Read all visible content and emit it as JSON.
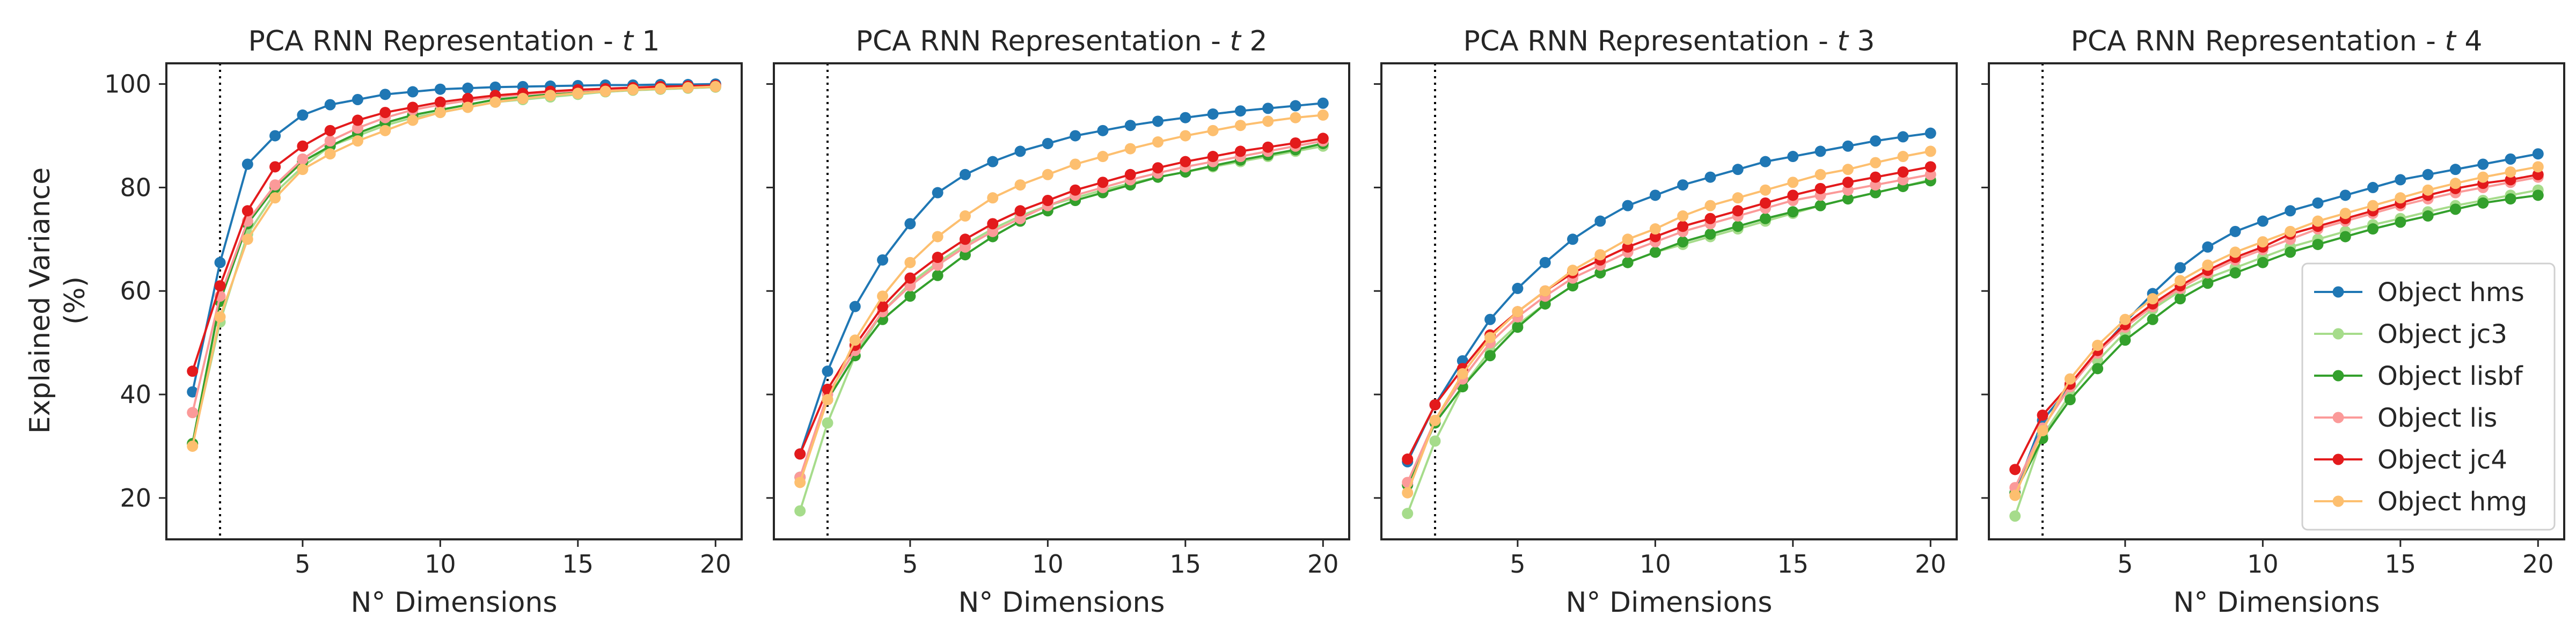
{
  "chart_data": {
    "type": "line",
    "layout": "1x4 panels, shared y-axis",
    "ylabel": "Explained Variance\n(%)",
    "xlabel": "N° Dimensions",
    "ylim": [
      12,
      104
    ],
    "yticks": [
      20,
      40,
      60,
      80,
      100
    ],
    "xlim": [
      0.05,
      20.95
    ],
    "xticks": [
      5,
      10,
      15,
      20
    ],
    "vline_x": 2,
    "grid": false,
    "legend": {
      "position": "bottom-right",
      "panel_index": 3
    },
    "series_styles": [
      {
        "name": "Object hms",
        "color": "#1f77b4"
      },
      {
        "name": "Object jc3",
        "color": "#a6dc8b"
      },
      {
        "name": "Object lisbf",
        "color": "#33a02c"
      },
      {
        "name": "Object lis",
        "color": "#fb9a99"
      },
      {
        "name": "Object jc4",
        "color": "#e31a1c"
      },
      {
        "name": "Object hmg",
        "color": "#fdbf6f"
      }
    ],
    "panels": [
      {
        "title": "PCA RNN Representation - ",
        "title_var": "t",
        "title_num": " 1",
        "x": [
          1,
          2,
          3,
          4,
          5,
          6,
          7,
          8,
          9,
          10,
          11,
          12,
          13,
          14,
          15,
          16,
          17,
          18,
          19,
          20
        ],
        "series": [
          {
            "name": "Object hms",
            "values": [
              40.5,
              65.5,
              84.5,
              90,
              94,
              96,
              97,
              98,
              98.5,
              99,
              99.2,
              99.4,
              99.5,
              99.6,
              99.7,
              99.8,
              99.8,
              99.9,
              99.9,
              100
            ]
          },
          {
            "name": "Object jc3",
            "values": [
              30.5,
              54,
              71,
              79,
              84,
              88,
              90,
              92,
              93.5,
              94.5,
              95.5,
              96.5,
              97,
              97.5,
              98,
              98.5,
              98.8,
              99,
              99.2,
              99.4
            ]
          },
          {
            "name": "Object lisbf",
            "values": [
              30.5,
              58,
              73,
              80,
              85,
              88,
              90.5,
              92.5,
              94,
              95,
              96,
              97,
              97.5,
              98,
              98.3,
              98.6,
              98.9,
              99.1,
              99.3,
              99.5
            ]
          },
          {
            "name": "Object lis",
            "values": [
              36.5,
              59,
              73.5,
              80.5,
              85.5,
              89,
              91.5,
              93.5,
              95,
              96,
              96.8,
              97.5,
              98,
              98.4,
              98.7,
              99,
              99.2,
              99.4,
              99.5,
              99.6
            ]
          },
          {
            "name": "Object jc4",
            "values": [
              44.5,
              61,
              75.5,
              84,
              88,
              91,
              93,
              94.5,
              95.5,
              96.5,
              97.2,
              97.8,
              98.2,
              98.6,
              98.9,
              99.1,
              99.3,
              99.5,
              99.6,
              99.7
            ]
          },
          {
            "name": "Object hmg",
            "values": [
              30,
              55,
              70,
              78,
              83.5,
              86.5,
              89,
              91,
              93,
              94.5,
              95.5,
              96.5,
              97.2,
              97.8,
              98.2,
              98.6,
              98.9,
              99.1,
              99.3,
              99.5
            ]
          }
        ]
      },
      {
        "title": "PCA RNN Representation - ",
        "title_var": "t",
        "title_num": " 2",
        "x": [
          1,
          2,
          3,
          4,
          5,
          6,
          7,
          8,
          9,
          10,
          11,
          12,
          13,
          14,
          15,
          16,
          17,
          18,
          19,
          20
        ],
        "series": [
          {
            "name": "Object hms",
            "values": [
              28.5,
              44.5,
              57,
              66,
              73,
              79,
              82.5,
              85,
              87,
              88.5,
              90,
              91,
              92,
              92.8,
              93.5,
              94.2,
              94.8,
              95.3,
              95.8,
              96.3
            ]
          },
          {
            "name": "Object jc3",
            "values": [
              17.5,
              34.5,
              47.5,
              56,
              61.5,
              65.5,
              69,
              72,
              74.5,
              76.5,
              78,
              79.5,
              80.8,
              82,
              83,
              84,
              85,
              86,
              87,
              88
            ]
          },
          {
            "name": "Object lisbf",
            "values": [
              24,
              39,
              47.5,
              54.5,
              59,
              63,
              67,
              70.5,
              73.5,
              75.5,
              77.5,
              79,
              80.5,
              82,
              83,
              84.2,
              85.3,
              86.3,
              87.3,
              88.5
            ]
          },
          {
            "name": "Object lis",
            "values": [
              24,
              40,
              48.5,
              56,
              61,
              65,
              68.5,
              71.5,
              74,
              76.5,
              78.5,
              80,
              81.5,
              82.8,
              84,
              85,
              86,
              87,
              88,
              89
            ]
          },
          {
            "name": "Object jc4",
            "values": [
              28.5,
              41,
              49.5,
              57,
              62.5,
              66.5,
              70,
              73,
              75.5,
              77.5,
              79.5,
              81,
              82.5,
              83.8,
              85,
              86,
              87,
              87.8,
              88.6,
              89.5
            ]
          },
          {
            "name": "Object hmg",
            "values": [
              23,
              39,
              50.5,
              59,
              65.5,
              70.5,
              74.5,
              78,
              80.5,
              82.5,
              84.5,
              86,
              87.5,
              88.8,
              90,
              91,
              92,
              92.8,
              93.5,
              94
            ]
          }
        ]
      },
      {
        "title": "PCA RNN Representation - ",
        "title_var": "t",
        "title_num": " 3",
        "x": [
          1,
          2,
          3,
          4,
          5,
          6,
          7,
          8,
          9,
          10,
          11,
          12,
          13,
          14,
          15,
          16,
          17,
          18,
          19,
          20
        ],
        "series": [
          {
            "name": "Object hms",
            "values": [
              27,
              38,
              46.5,
              54.5,
              60.5,
              65.5,
              70,
              73.5,
              76.5,
              78.5,
              80.5,
              82,
              83.5,
              85,
              86,
              87,
              88,
              89,
              89.8,
              90.5
            ]
          },
          {
            "name": "Object jc3",
            "values": [
              17,
              31,
              41.5,
              48.5,
              53.5,
              57.5,
              61,
              63.5,
              65.5,
              67.5,
              69,
              70.5,
              72,
              73.5,
              75,
              76.5,
              77.8,
              79,
              80.2,
              81.5
            ]
          },
          {
            "name": "Object lisbf",
            "values": [
              22.5,
              34.5,
              41.5,
              47.5,
              53,
              57.5,
              61,
              63.5,
              65.5,
              67.5,
              69.5,
              71,
              72.5,
              74,
              75.3,
              76.5,
              77.8,
              79,
              80.2,
              81.3
            ]
          },
          {
            "name": "Object lis",
            "values": [
              23,
              35,
              43,
              50,
              55,
              59,
              62.5,
              65,
              67.5,
              69.5,
              71.5,
              73,
              74.5,
              76,
              77.5,
              78.5,
              79.5,
              80.5,
              81.5,
              82.5
            ]
          },
          {
            "name": "Object jc4",
            "values": [
              27.5,
              38,
              45,
              51.5,
              56,
              60,
              63.5,
              66,
              68.5,
              70.5,
              72.5,
              74,
              75.5,
              77,
              78.5,
              79.8,
              81,
              82,
              83,
              84
            ]
          },
          {
            "name": "Object hmg",
            "values": [
              21,
              35,
              44,
              51,
              56,
              60,
              64,
              67,
              70,
              72,
              74.5,
              76.5,
              78,
              79.5,
              81,
              82.5,
              83.5,
              84.8,
              86,
              87
            ]
          }
        ]
      },
      {
        "title": "PCA RNN Representation - ",
        "title_var": "t",
        "title_num": " 4",
        "x": [
          1,
          2,
          3,
          4,
          5,
          6,
          7,
          8,
          9,
          10,
          11,
          12,
          13,
          14,
          15,
          16,
          17,
          18,
          19,
          20
        ],
        "series": [
          {
            "name": "Object hms",
            "values": [
              21,
              35,
              41.5,
              48,
              54,
              59.5,
              64.5,
              68.5,
              71.5,
              73.5,
              75.5,
              77,
              78.5,
              80,
              81.5,
              82.5,
              83.5,
              84.5,
              85.5,
              86.5
            ]
          },
          {
            "name": "Object jc3",
            "values": [
              16.5,
              32,
              40,
              46.5,
              52,
              56.5,
              60,
              62.5,
              64.5,
              66.5,
              68.5,
              70,
              71.5,
              72.8,
              74,
              75.3,
              76.5,
              77.5,
              78.5,
              79.5
            ]
          },
          {
            "name": "Object lisbf",
            "values": [
              21,
              31.5,
              39,
              45,
              50.5,
              54.5,
              58.5,
              61.5,
              63.5,
              65.5,
              67.5,
              69,
              70.5,
              72,
              73.3,
              74.5,
              75.8,
              77,
              77.8,
              78.5
            ]
          },
          {
            "name": "Object lis",
            "values": [
              22,
              33.5,
              41.5,
              48,
              53,
              57,
              60.5,
              63.5,
              66,
              68,
              70,
              72,
              73.5,
              75,
              76.5,
              77.8,
              79,
              80,
              81,
              82
            ]
          },
          {
            "name": "Object jc4",
            "values": [
              25.5,
              36,
              42,
              48.5,
              53.5,
              57.5,
              61,
              64,
              66.5,
              68.5,
              71,
              72.5,
              74,
              75.5,
              77,
              78.5,
              79.8,
              80.8,
              81.5,
              82.5
            ]
          },
          {
            "name": "Object hmg",
            "values": [
              20.5,
              33,
              43,
              49.5,
              54.5,
              58.5,
              62,
              65,
              67.5,
              69.5,
              71.5,
              73.5,
              75,
              76.5,
              78,
              79.5,
              80.8,
              82,
              83,
              84
            ]
          }
        ]
      }
    ]
  }
}
